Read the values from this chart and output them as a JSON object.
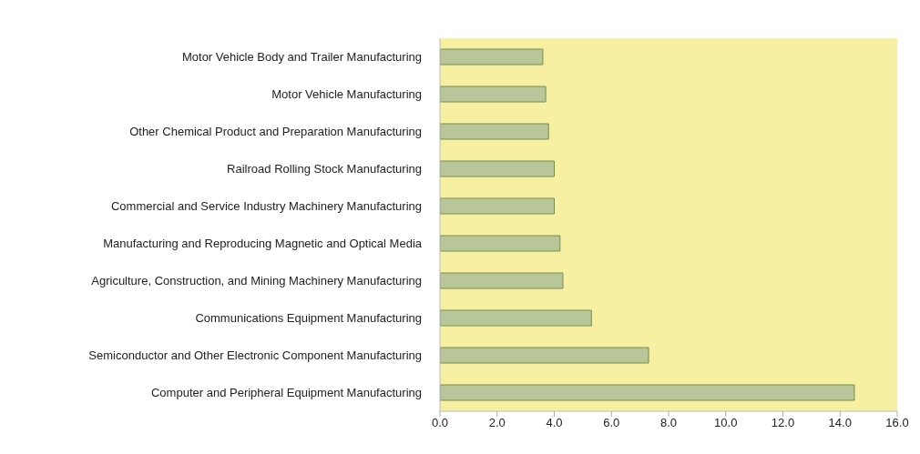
{
  "chart_data": {
    "type": "bar",
    "orientation": "horizontal",
    "categories": [
      "Motor Vehicle Body and Trailer Manufacturing",
      "Motor Vehicle Manufacturing",
      "Other Chemical Product and Preparation Manufacturing",
      "Railroad Rolling Stock Manufacturing",
      "Commercial and Service Industry Machinery Manufacturing",
      "Manufacturing and Reproducing Magnetic and Optical Media",
      "Agriculture, Construction, and Mining Machinery Manufacturing",
      "Communications Equipment Manufacturing",
      "Semiconductor and Other Electronic Component Manufacturing",
      "Computer and Peripheral Equipment Manufacturing"
    ],
    "values": [
      3.6,
      3.7,
      3.8,
      4.0,
      4.0,
      4.2,
      4.3,
      5.3,
      7.3,
      14.5
    ],
    "color": "#b8c69a",
    "xlim": [
      0,
      16
    ],
    "xticks": [
      {
        "value": 0,
        "label": "0.0"
      },
      {
        "value": 2,
        "label": "2.0"
      },
      {
        "value": 4,
        "label": "4.0"
      },
      {
        "value": 6,
        "label": "6.0"
      },
      {
        "value": 8,
        "label": "8.0"
      },
      {
        "value": 10,
        "label": "10.0"
      },
      {
        "value": 12,
        "label": "12.0"
      },
      {
        "value": 14,
        "label": "14.0"
      },
      {
        "value": 16,
        "label": "16.0"
      }
    ],
    "grid": false,
    "legend": false
  }
}
